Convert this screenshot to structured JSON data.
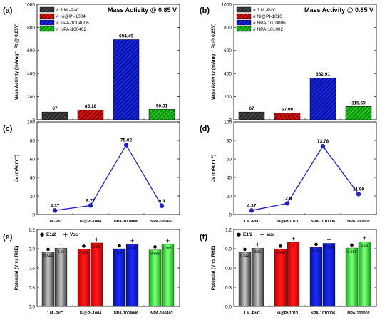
{
  "chart_data": [
    {
      "panel": "(a)",
      "type": "bar",
      "title": "Mass Activity @ 0.85 V",
      "ylabel": "Mass Activity (mAmg⁻¹ Pt @ 0.85V)",
      "ylim": [
        0,
        1000
      ],
      "yticks": [
        0,
        200,
        400,
        600,
        800,
        1000
      ],
      "categories": [
        "# J.M.-Pt/C",
        "# Ni@Pt-1004",
        "# NPA-1004006",
        "# NPA-100402"
      ],
      "values": [
        67,
        85.18,
        694.49,
        90.01
      ],
      "value_labels": [
        "67",
        "85.18",
        "694.49",
        "90.01"
      ],
      "colors": [
        "#2b2b2b",
        "#b00000",
        "#0a14b4",
        "#10a010"
      ],
      "legend_position": "top-left"
    },
    {
      "panel": "(b)",
      "type": "bar",
      "title": "Mass Activity @ 0.85 V",
      "ylabel": "Mass Activity (mAmg⁻¹ Pt @ 0.85V)",
      "ylim": [
        0,
        1000
      ],
      "yticks": [
        0,
        200,
        400,
        600,
        800,
        1000
      ],
      "categories": [
        "# J.M.-Pt/C",
        "# Ni@Pt-1010",
        "# NPA-1010006",
        "# NPA-101002"
      ],
      "values": [
        67,
        57.98,
        362.91,
        115.69
      ],
      "value_labels": [
        "67",
        "57.98",
        "362.91",
        "115.69"
      ],
      "colors": [
        "#2b2b2b",
        "#b00000",
        "#0a14b4",
        "#10a010"
      ],
      "legend_position": "top-left"
    },
    {
      "panel": "(c)",
      "type": "line",
      "ylabel": "Jₖ (mAcm⁻²)",
      "ylim": [
        0,
        100
      ],
      "yticks": [
        0,
        20,
        40,
        60,
        80,
        100
      ],
      "categories": [
        "J.M.-Pt/C",
        "Ni@Pt-1004",
        "NPA-1004006",
        "NPA-100402"
      ],
      "values": [
        4.37,
        9.72,
        75.02,
        9.4
      ],
      "value_labels": [
        "4.37",
        "9.72",
        "75.02",
        "9.4"
      ],
      "color": "#2020d0"
    },
    {
      "panel": "(d)",
      "type": "line",
      "ylabel": "Jₖ (mAcm⁻²)",
      "ylim": [
        0,
        100
      ],
      "yticks": [
        0,
        20,
        40,
        60,
        80,
        100
      ],
      "categories": [
        "J.M.-Pt/C",
        "Ni@Pt-1010",
        "NPA-1010006",
        "NPA-101002"
      ],
      "values": [
        4.37,
        12.0,
        73.78,
        21.99
      ],
      "value_labels": [
        "4.37",
        "12.0",
        "73.78",
        "21.99"
      ],
      "color": "#2020d0"
    },
    {
      "panel": "(e)",
      "type": "bar",
      "ylabel": "Potential (V vs RHE)",
      "ylim": [
        0,
        1.2
      ],
      "yticks": [
        0.0,
        0.3,
        0.6,
        0.9,
        1.2
      ],
      "ytick_labels": [
        "0.0",
        "0.3",
        "0.6",
        "0.9",
        "1.2"
      ],
      "categories": [
        "J.M.-Pt/C",
        "Ni@Pt-1004",
        "NPA-1004006",
        "NPA-100402"
      ],
      "legend": [
        "E1/2",
        "Voc"
      ],
      "series": [
        {
          "name": "E1/2",
          "values": [
            0.844,
            0.892,
            0.9,
            0.882
          ],
          "value_labels": [
            "0.844",
            "0.892",
            "0.9",
            "0.882"
          ],
          "marker": "●"
        },
        {
          "name": "Voc",
          "values": [
            0.91,
            0.99,
            0.964,
            0.969
          ],
          "value_labels": [
            "0.91",
            "0.99",
            "0.964",
            "0.969"
          ],
          "marker": "+"
        }
      ],
      "colors": [
        "#555555",
        "#d00000",
        "#0c14c8",
        "#14d014"
      ]
    },
    {
      "panel": "(f)",
      "type": "bar",
      "ylabel": "Potential (V vs RHE)",
      "ylim": [
        0,
        1.2
      ],
      "yticks": [
        0.0,
        0.3,
        0.6,
        0.9,
        1.2
      ],
      "ytick_labels": [
        "0.0",
        "0.3",
        "0.6",
        "0.9",
        "1.2"
      ],
      "categories": [
        "J.M.-Pt/C",
        "Ni@Pt-1010",
        "NPA-1010006",
        "NPA-101002"
      ],
      "legend": [
        "E1/2",
        "Voc"
      ],
      "series": [
        {
          "name": "E1/2",
          "values": [
            0.844,
            0.896,
            0.92,
            0.911
          ],
          "value_labels": [
            "0.844",
            "0.896",
            "0.92",
            "0.911"
          ],
          "marker": "●"
        },
        {
          "name": "Voc",
          "values": [
            0.91,
            1.0,
            0.984,
            1.01
          ],
          "value_labels": [
            "0.91",
            "1",
            "0.984",
            "1.01"
          ],
          "marker": "+"
        }
      ],
      "colors": [
        "#555555",
        "#d00000",
        "#0c14c8",
        "#14d014"
      ]
    }
  ]
}
